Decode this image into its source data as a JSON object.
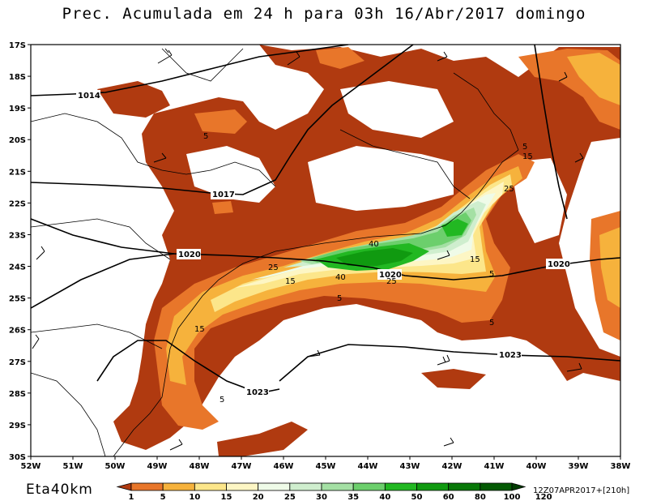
{
  "title": "Prec. Acumulada em 24 h para 03h 16/Abr/2017 domingo",
  "model_label": "Eta40km",
  "run_info": "12Z07APR2017+[210h]",
  "lat_labels": [
    "17S",
    "18S",
    "19S",
    "20S",
    "21S",
    "22S",
    "23S",
    "24S",
    "25S",
    "26S",
    "27S",
    "28S",
    "29S",
    "30S"
  ],
  "lon_labels": [
    "52W",
    "51W",
    "50W",
    "49W",
    "48W",
    "47W",
    "46W",
    "45W",
    "44W",
    "43W",
    "42W",
    "41W",
    "40W",
    "39W",
    "38W"
  ],
  "isobars": [
    {
      "label": "1014"
    },
    {
      "label": "1017"
    },
    {
      "label": "1020"
    },
    {
      "label": "1020"
    },
    {
      "label": "1020"
    },
    {
      "label": "1023"
    },
    {
      "label": "1023"
    }
  ],
  "contour_labels": [
    "5",
    "5",
    "5",
    "5",
    "5",
    "15",
    "25",
    "40",
    "40",
    "25",
    "15",
    "15",
    "25",
    "15",
    "5"
  ],
  "colorbar": {
    "levels": [
      "1",
      "5",
      "10",
      "15",
      "20",
      "25",
      "30",
      "35",
      "40",
      "50",
      "60",
      "80",
      "100",
      "120"
    ],
    "colors": [
      "#b03a10",
      "#e8762a",
      "#f6b23c",
      "#fce68a",
      "#fdf6c4",
      "#effbe8",
      "#cfeece",
      "#a4e0a4",
      "#6ccf6c",
      "#22b822",
      "#109a10",
      "#087808",
      "#045a04",
      "#023c02"
    ]
  }
}
